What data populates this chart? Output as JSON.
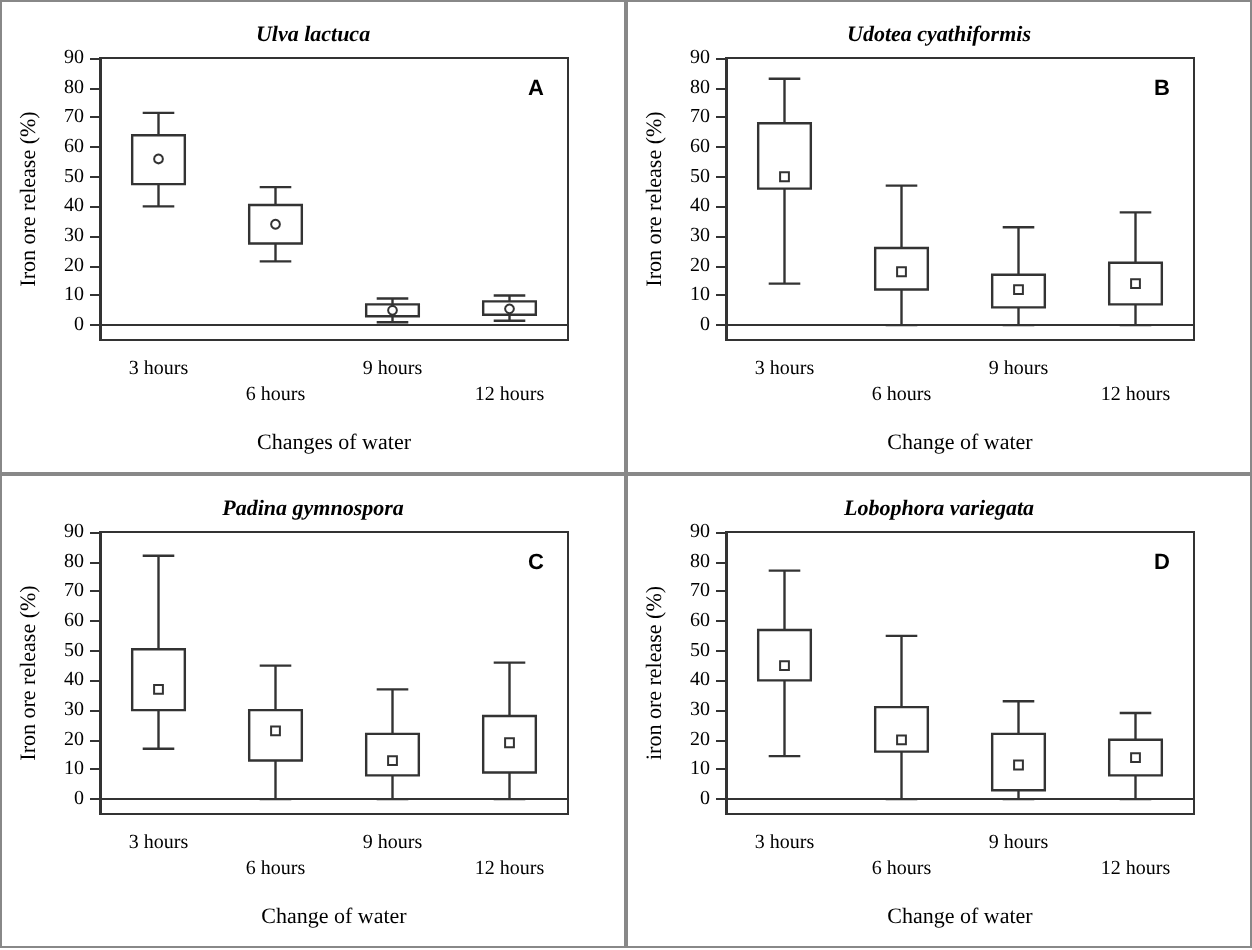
{
  "chart_data": [
    {
      "type": "box",
      "title": "Ulva lactuca",
      "xlabel": "Changes of water",
      "ylabel": "Iron ore release (%)",
      "annotations": [
        "A"
      ],
      "marker": "circle",
      "categories": [
        "3 hours",
        "6 hours",
        "9 hours",
        "12 hours"
      ],
      "ylim": [
        -5,
        90
      ],
      "yticks": [
        0,
        10,
        20,
        30,
        40,
        50,
        60,
        70,
        80,
        90
      ],
      "boxes": [
        {
          "low": 40,
          "q1": 47.5,
          "median": 56,
          "q3": 64,
          "high": 71.5
        },
        {
          "low": 21.5,
          "q1": 27.5,
          "median": 34,
          "q3": 40.5,
          "high": 46.5
        },
        {
          "low": 1,
          "q1": 3,
          "median": 5,
          "q3": 7,
          "high": 9
        },
        {
          "low": 1.5,
          "q1": 3.5,
          "median": 5.5,
          "q3": 8,
          "high": 10
        }
      ]
    },
    {
      "type": "box",
      "title": "Udotea cyathiformis",
      "xlabel": "Change of water",
      "ylabel": "Iron ore release (%)",
      "annotations": [
        "B"
      ],
      "marker": "square",
      "categories": [
        "3 hours",
        "6 hours",
        "9 hours",
        "12 hours"
      ],
      "ylim": [
        -5,
        90
      ],
      "yticks": [
        0,
        10,
        20,
        30,
        40,
        50,
        60,
        70,
        80,
        90
      ],
      "boxes": [
        {
          "low": 14,
          "q1": 46,
          "median": 50,
          "q3": 68,
          "high": 83
        },
        {
          "low": 0,
          "q1": 12,
          "median": 18,
          "q3": 26,
          "high": 47
        },
        {
          "low": 0,
          "q1": 6,
          "median": 12,
          "q3": 17,
          "high": 33
        },
        {
          "low": 0,
          "q1": 7,
          "median": 14,
          "q3": 21,
          "high": 38
        }
      ]
    },
    {
      "type": "box",
      "title": "Padina gymnospora",
      "xlabel": "Change of water",
      "ylabel": "Iron ore release (%)",
      "annotations": [
        "C"
      ],
      "marker": "square",
      "categories": [
        "3 hours",
        "6 hours",
        "9 hours",
        "12 hours"
      ],
      "ylim": [
        -5,
        90
      ],
      "yticks": [
        0,
        10,
        20,
        30,
        40,
        50,
        60,
        70,
        80,
        90
      ],
      "boxes": [
        {
          "low": 17,
          "q1": 30,
          "median": 37,
          "q3": 50.5,
          "high": 82
        },
        {
          "low": 0,
          "q1": 13,
          "median": 23,
          "q3": 30,
          "high": 45
        },
        {
          "low": 0,
          "q1": 8,
          "median": 13,
          "q3": 22,
          "high": 37
        },
        {
          "low": 0,
          "q1": 9,
          "median": 19,
          "q3": 28,
          "high": 46
        }
      ]
    },
    {
      "type": "box",
      "title": "Lobophora variegata",
      "xlabel": "Change of water",
      "ylabel": "iron ore release (%)",
      "annotations": [
        "D"
      ],
      "marker": "square",
      "categories": [
        "3 hours",
        "6 hours",
        "9 hours",
        "12 hours"
      ],
      "ylim": [
        -5,
        90
      ],
      "yticks": [
        0,
        10,
        20,
        30,
        40,
        50,
        60,
        70,
        80,
        90
      ],
      "boxes": [
        {
          "low": 14.5,
          "q1": 40,
          "median": 45,
          "q3": 57,
          "high": 77
        },
        {
          "low": 0,
          "q1": 16,
          "median": 20,
          "q3": 31,
          "high": 55
        },
        {
          "low": 0,
          "q1": 3,
          "median": 11.5,
          "q3": 22,
          "high": 33
        },
        {
          "low": 0,
          "q1": 8,
          "median": 14,
          "q3": 20,
          "high": 29
        }
      ]
    }
  ]
}
